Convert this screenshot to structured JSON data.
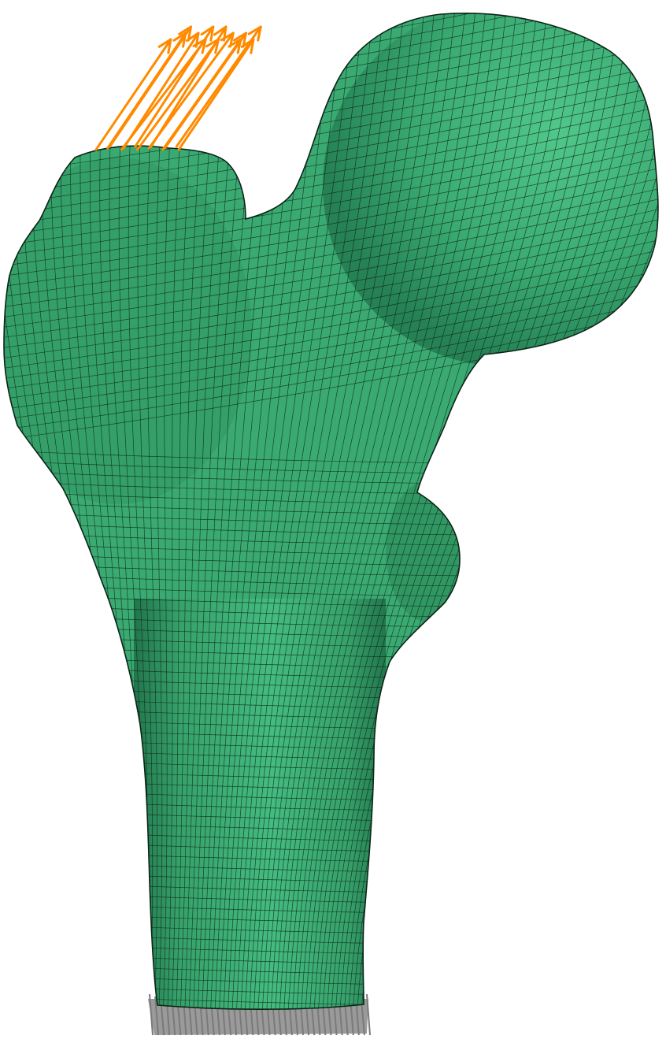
{
  "scene": {
    "subject": "femur-mesh",
    "colors": {
      "background": "#ffffff",
      "bone_fill": "#3aaa72",
      "bone_highlight": "#4cc488",
      "bone_shadow": "#1f7048",
      "mesh_lines": "#0b2416",
      "load_arrows": "#ff8a00",
      "fixed_support": "#9a9a9a"
    },
    "load_arrow_count": 13,
    "support_marker_count": 40
  }
}
